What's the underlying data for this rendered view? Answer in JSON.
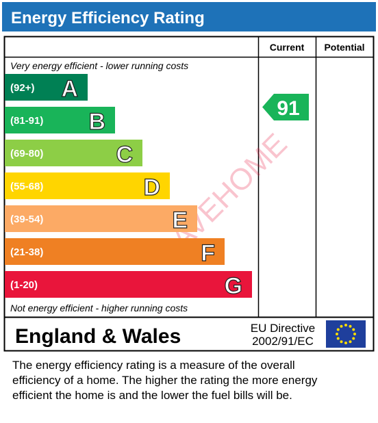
{
  "header": {
    "title": "Energy Efficiency Rating"
  },
  "table": {
    "columns": [
      "Current",
      "Potential"
    ],
    "top_note": "Very energy efficient - lower running costs",
    "bottom_note": "Not energy efficient - higher running costs",
    "bands": [
      {
        "range": "(92+)",
        "letter": "A",
        "color": "#008054"
      },
      {
        "range": "(81-91)",
        "letter": "B",
        "color": "#19b459"
      },
      {
        "range": "(69-80)",
        "letter": "C",
        "color": "#8dce46"
      },
      {
        "range": "(55-68)",
        "letter": "D",
        "color": "#ffd500"
      },
      {
        "range": "(39-54)",
        "letter": "E",
        "color": "#fcaa65"
      },
      {
        "range": "(21-38)",
        "letter": "F",
        "color": "#ef8023"
      },
      {
        "range": "(1-20)",
        "letter": "G",
        "color": "#e9153b"
      }
    ],
    "current": {
      "value": 91,
      "color": "#19b459"
    },
    "footer": {
      "region": "England & Wales",
      "directive": [
        "EU Directive",
        "2002/91/EC"
      ]
    }
  },
  "watermark": "AVEHOME",
  "description": [
    "The energy efficiency rating is a measure of the overall",
    "efficiency of a home.  The higher the rating the more energy",
    "efficient the home is and the lower the fuel bills will be."
  ]
}
